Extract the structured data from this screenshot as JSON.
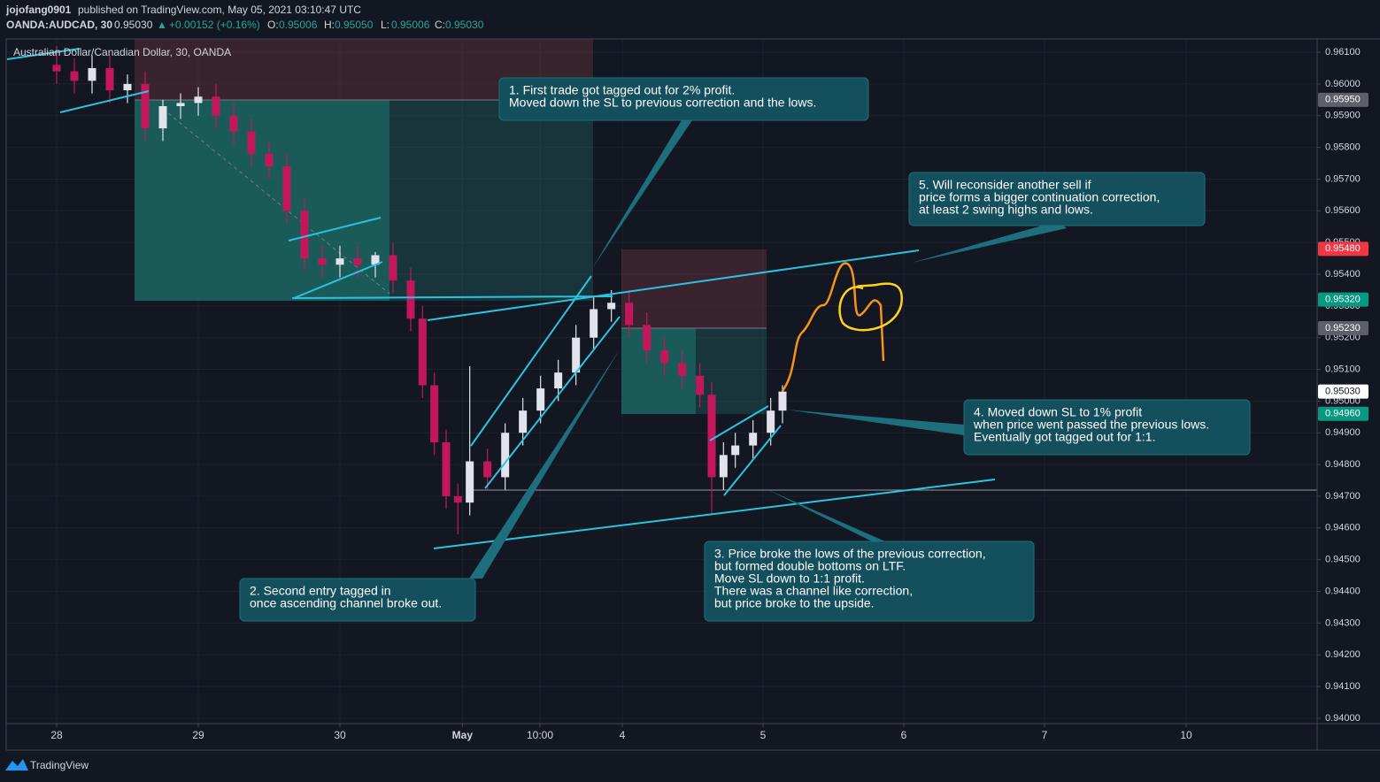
{
  "header": {
    "author": "jojofang0901",
    "published": "published on TradingView.com, May 05, 2021 03:10:47 UTC",
    "symbol_line": [
      "OANDA:AUDCAD, 30",
      "0.95030",
      "▲",
      "+0.00152 (+0.16%)",
      "O:",
      "0.95006",
      "H:",
      "0.95050",
      "L:",
      "0.95006",
      "C:",
      "0.95030"
    ]
  },
  "footer": {
    "brand": "TradingView"
  },
  "chart_data": {
    "type": "candlestick",
    "title": "Australian Dollar/Canadian Dollar, 30, OANDA",
    "x": [
      0,
      6,
      12,
      18,
      24,
      30,
      36,
      42,
      48,
      54,
      60,
      66,
      72,
      78,
      84,
      90,
      96,
      102,
      108,
      114,
      120,
      124,
      128,
      132,
      136,
      140,
      146,
      152,
      158,
      164,
      170,
      176,
      182,
      188,
      194,
      200,
      206,
      212,
      218,
      222,
      226,
      230,
      236,
      242,
      246
    ],
    "open": [
      0.9606,
      0.9604,
      0.9601,
      0.9605,
      0.9598,
      0.96,
      0.9586,
      0.9593,
      0.9594,
      0.9596,
      0.959,
      0.9585,
      0.9578,
      0.9574,
      0.956,
      0.9545,
      0.9543,
      0.9545,
      0.9543,
      0.9546,
      0.9538,
      0.9526,
      0.9505,
      0.9487,
      0.947,
      0.9468,
      0.9481,
      0.9476,
      0.949,
      0.9497,
      0.9504,
      0.9509,
      0.952,
      0.9529,
      0.9531,
      0.9524,
      0.9516,
      0.9512,
      0.9508,
      0.9502,
      0.9476,
      0.9483,
      0.9486,
      0.949,
      0.9497
    ],
    "high": [
      0.9612,
      0.9608,
      0.9609,
      0.9609,
      0.9603,
      0.9604,
      0.9595,
      0.9597,
      0.9599,
      0.96,
      0.9594,
      0.9589,
      0.9582,
      0.9578,
      0.9564,
      0.9549,
      0.9549,
      0.9549,
      0.9547,
      0.955,
      0.9542,
      0.953,
      0.9509,
      0.9491,
      0.9474,
      0.9511,
      0.9485,
      0.9493,
      0.9501,
      0.9508,
      0.9513,
      0.9524,
      0.9533,
      0.9535,
      0.9535,
      0.9528,
      0.952,
      0.9516,
      0.9512,
      0.9506,
      0.9487,
      0.949,
      0.9494,
      0.9501,
      0.9505
    ],
    "low": [
      0.96,
      0.9597,
      0.9597,
      0.9594,
      0.9594,
      0.9582,
      0.9582,
      0.9589,
      0.959,
      0.9586,
      0.9581,
      0.9574,
      0.957,
      0.9556,
      0.9541,
      0.9539,
      0.9539,
      0.9539,
      0.9539,
      0.9534,
      0.9522,
      0.9501,
      0.9483,
      0.9466,
      0.9458,
      0.9464,
      0.9472,
      0.9472,
      0.9486,
      0.9493,
      0.95,
      0.9505,
      0.9516,
      0.9525,
      0.952,
      0.9512,
      0.9508,
      0.9504,
      0.9498,
      0.9464,
      0.9472,
      0.9479,
      0.9482,
      0.9486,
      0.9493
    ],
    "close": [
      0.9604,
      0.9601,
      0.9605,
      0.9598,
      0.96,
      0.9586,
      0.9593,
      0.9594,
      0.9596,
      0.959,
      0.9585,
      0.9578,
      0.9574,
      0.956,
      0.9545,
      0.9543,
      0.9545,
      0.9543,
      0.9546,
      0.9538,
      0.9526,
      0.9505,
      0.9487,
      0.947,
      0.9468,
      0.9481,
      0.9476,
      0.949,
      0.9497,
      0.9504,
      0.9509,
      0.952,
      0.9529,
      0.9531,
      0.9524,
      0.9516,
      0.9512,
      0.9508,
      0.9502,
      0.9476,
      0.9483,
      0.9486,
      0.949,
      0.9497,
      0.9503
    ],
    "up_color": "#e0e3eb",
    "down_color": "#c2185b",
    "xlim": [
      -17.1,
      427.2
    ],
    "xticks": [
      {
        "value": 0,
        "label": "28"
      },
      {
        "value": 48,
        "label": "29"
      },
      {
        "value": 96,
        "label": "30"
      },
      {
        "value": 137.5,
        "label": "May"
      },
      {
        "value": 163.8,
        "label": "10:00"
      },
      {
        "value": 191.7,
        "label": "4"
      },
      {
        "value": 239.4,
        "label": "5"
      },
      {
        "value": 287.1,
        "label": "6"
      },
      {
        "value": 334.8,
        "label": "7"
      },
      {
        "value": 382.8,
        "label": "10"
      }
    ],
    "ylim": [
      0.93983,
      0.96142
    ],
    "yticks": [
      {
        "value": 0.94,
        "label": "0.94000"
      },
      {
        "value": 0.941,
        "label": "0.94100"
      },
      {
        "value": 0.942,
        "label": "0.94200"
      },
      {
        "value": 0.943,
        "label": "0.94300"
      },
      {
        "value": 0.944,
        "label": "0.94400"
      },
      {
        "value": 0.945,
        "label": "0.94500"
      },
      {
        "value": 0.946,
        "label": "0.94600"
      },
      {
        "value": 0.947,
        "label": "0.94700"
      },
      {
        "value": 0.948,
        "label": "0.94800"
      },
      {
        "value": 0.949,
        "label": "0.94900"
      },
      {
        "value": 0.95,
        "label": "0.95000"
      },
      {
        "value": 0.951,
        "label": "0.95100"
      },
      {
        "value": 0.952,
        "label": "0.95200"
      },
      {
        "value": 0.953,
        "label": "0.95300"
      },
      {
        "value": 0.954,
        "label": "0.95400"
      },
      {
        "value": 0.955,
        "label": "0.95500"
      },
      {
        "value": 0.956,
        "label": "0.95600"
      },
      {
        "value": 0.957,
        "label": "0.95700"
      },
      {
        "value": 0.958,
        "label": "0.95800"
      },
      {
        "value": 0.959,
        "label": "0.95900"
      },
      {
        "value": 0.96,
        "label": "0.96000"
      },
      {
        "value": 0.961,
        "label": "0.96100"
      }
    ],
    "grid": true,
    "price_labels": [
      {
        "value": 0.9595,
        "label": "0.95950",
        "color": "#5d606b"
      },
      {
        "value": 0.9548,
        "label": "0.95480",
        "color": "#f23645"
      },
      {
        "value": 0.9532,
        "label": "0.95320",
        "color": "#089981"
      },
      {
        "value": 0.9523,
        "label": "0.95230",
        "color": "#5d606b"
      },
      {
        "value": 0.9503,
        "label": "0.95030",
        "color": "#ffffff"
      },
      {
        "value": 0.9496,
        "label": "0.94960",
        "color": "#089981"
      }
    ],
    "annotations": [
      {
        "lines": [
          "1. First trade got tagged out for 2% profit.",
          "Moved down the SL to previous correction and the lows."
        ]
      },
      {
        "lines": [
          "5. Will reconsider another sell if",
          "price forms a bigger continuation correction,",
          "at least 2 swing highs and lows."
        ]
      },
      {
        "lines": [
          "4. Moved down SL to 1% profit",
          "when price went passed the previous lows.",
          "Eventually got tagged out for 1:1."
        ]
      },
      {
        "lines": [
          "3. Price broke the lows of the previous correction,",
          "but formed double bottoms on LTF.",
          "Move SL down to 1:1 profit.",
          "There was a channel like correction,",
          "but price broke to the upside."
        ]
      },
      {
        "lines": [
          "2. Second entry tagged in",
          "once ascending channel broke out."
        ]
      }
    ]
  }
}
